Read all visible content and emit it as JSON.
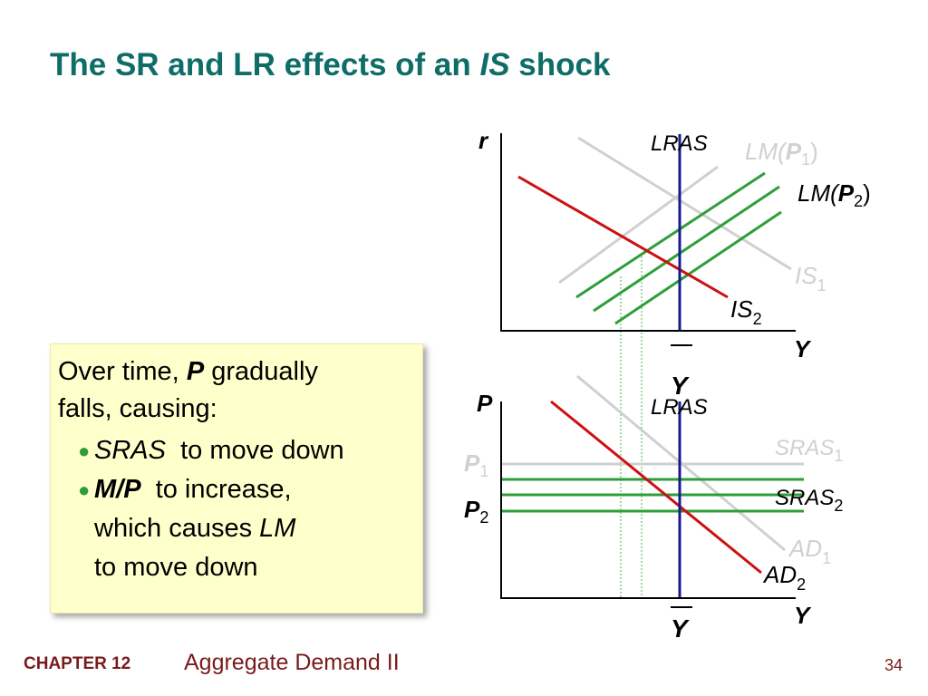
{
  "slide": {
    "title_pre": "The SR and LR effects of an ",
    "title_italic": "IS",
    "title_post": " shock"
  },
  "callout": {
    "line1_pre": "Over time, ",
    "line1_bold": "P",
    "line1_post": " gradually",
    "line2": "falls, causing:",
    "bullets": [
      {
        "italic": "SRAS",
        "text": " to move down"
      },
      {
        "bold": "M/P",
        "text": " to increase,",
        "cont1_pre": "which causes ",
        "cont1_italic": "LM",
        "cont2": "to move down"
      }
    ],
    "bullet_color": "#2e9e3a"
  },
  "colors": {
    "title": "#0e6e67",
    "footer": "#7a1b1b",
    "lras": "#1a1a8c",
    "is_ad_shifted": "#cc1111",
    "lm_sras_shifted": "#2e9e3a",
    "original_curves": "#d0d0d0"
  },
  "top_graph": {
    "y_axis": "r",
    "x_axis": "Y",
    "ybar": "Y",
    "lras": "LRAS",
    "lm1": {
      "base": "LM(",
      "bold": "P",
      "sub": "1",
      "close": ")"
    },
    "lm2": {
      "base": "LM(",
      "bold": "P",
      "sub": "2",
      "close": ")"
    },
    "is1": {
      "base": "IS",
      "sub": "1"
    },
    "is2": {
      "base": "IS",
      "sub": "2"
    }
  },
  "bottom_graph": {
    "y_axis": "P",
    "x_axis": "Y",
    "ybar": "Y",
    "lras": "LRAS",
    "p1": {
      "base": "P",
      "sub": "1"
    },
    "p2": {
      "base": "P",
      "sub": "2"
    },
    "sras1": {
      "base": "SRAS",
      "sub": "1"
    },
    "sras2": {
      "base": "SRAS",
      "sub": "2"
    },
    "ad1": {
      "base": "AD",
      "sub": "1"
    },
    "ad2": {
      "base": "AD",
      "sub": "2"
    }
  },
  "footer": {
    "chapter": "CHAPTER 12",
    "title": "Aggregate Demand II",
    "page": "34"
  }
}
